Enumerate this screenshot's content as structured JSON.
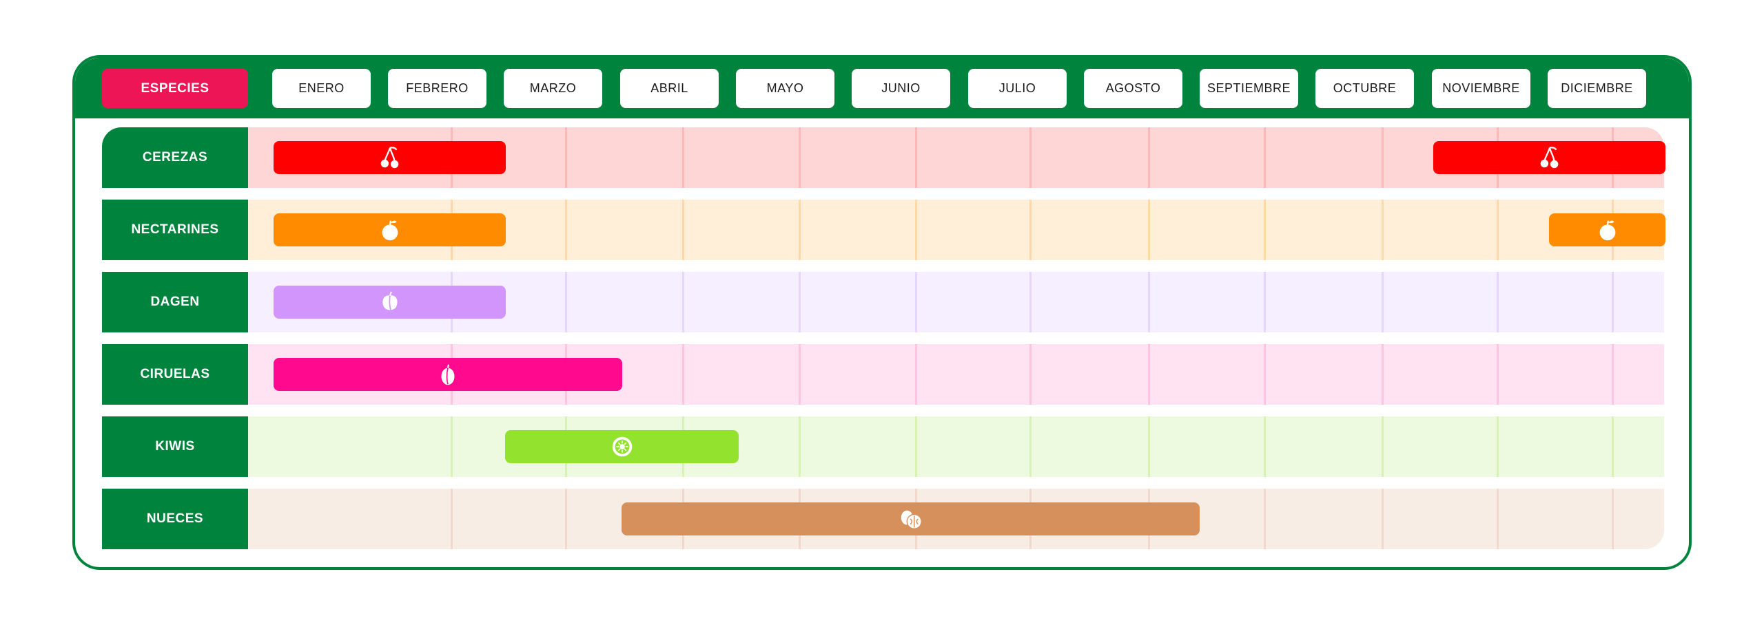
{
  "header": {
    "species_label": "ESPECIES",
    "months": [
      "ENERO",
      "FEBRERO",
      "MARZO",
      "ABRIL",
      "MAYO",
      "JUNIO",
      "JULIO",
      "AGOSTO",
      "SEPTIEMBRE",
      "OCTUBRE",
      "NOVIEMBRE",
      "DICIEMBRE"
    ]
  },
  "colors": {
    "brand_green": "#00843d",
    "species_accent": "#ee1556"
  },
  "species": [
    {
      "name": "CEREZAS",
      "icon": "cherry-icon",
      "color": "#ff0000",
      "track": "#ffd6d6",
      "grid": "#ffb8b8",
      "seasons": [
        {
          "start_month": 1,
          "end_month": 2
        },
        {
          "start_month": 11,
          "end_month": 12
        }
      ]
    },
    {
      "name": "NECTARINES",
      "icon": "nectarine-icon",
      "color": "#ff8c00",
      "track": "#ffeed8",
      "grid": "#ffd9a8",
      "seasons": [
        {
          "start_month": 1,
          "end_month": 2
        },
        {
          "start_month": 12,
          "end_month": 12
        }
      ]
    },
    {
      "name": "DAGEN",
      "icon": "peach-icon",
      "color": "#d295fb",
      "track": "#f5efff",
      "grid": "#e6d6fb",
      "seasons": [
        {
          "start_month": 1,
          "end_month": 2
        }
      ]
    },
    {
      "name": "CIRUELAS",
      "icon": "plum-icon",
      "color": "#ff0a8f",
      "track": "#ffe3f2",
      "grid": "#ffc4e0",
      "seasons": [
        {
          "start_month": 1,
          "end_month": 3
        }
      ]
    },
    {
      "name": "KIWIS",
      "icon": "kiwi-icon",
      "color": "#92e22e",
      "track": "#eefadf",
      "grid": "#d8f2b4",
      "seasons": [
        {
          "start_month": 3,
          "end_month": 4
        }
      ]
    },
    {
      "name": "NUECES",
      "icon": "walnut-icon",
      "color": "#d5905c",
      "track": "#f8ede4",
      "grid": "#f0d9cc",
      "seasons": [
        {
          "start_month": 4,
          "end_month": 8
        }
      ]
    }
  ]
}
